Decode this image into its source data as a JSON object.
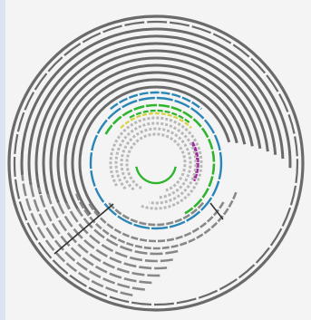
{
  "diagram": {
    "type": "circular-track-plot",
    "colors": {
      "background": "#f4f4f4",
      "outer_track": "#6a6a6a",
      "mid_track": "#888888",
      "light_track": "#b8b8b8",
      "blue": "#2a86b6",
      "green": "#2eb52e",
      "yellow": "#d8d34a",
      "magenta": "#a0269b",
      "link_line": "#333333"
    }
  }
}
